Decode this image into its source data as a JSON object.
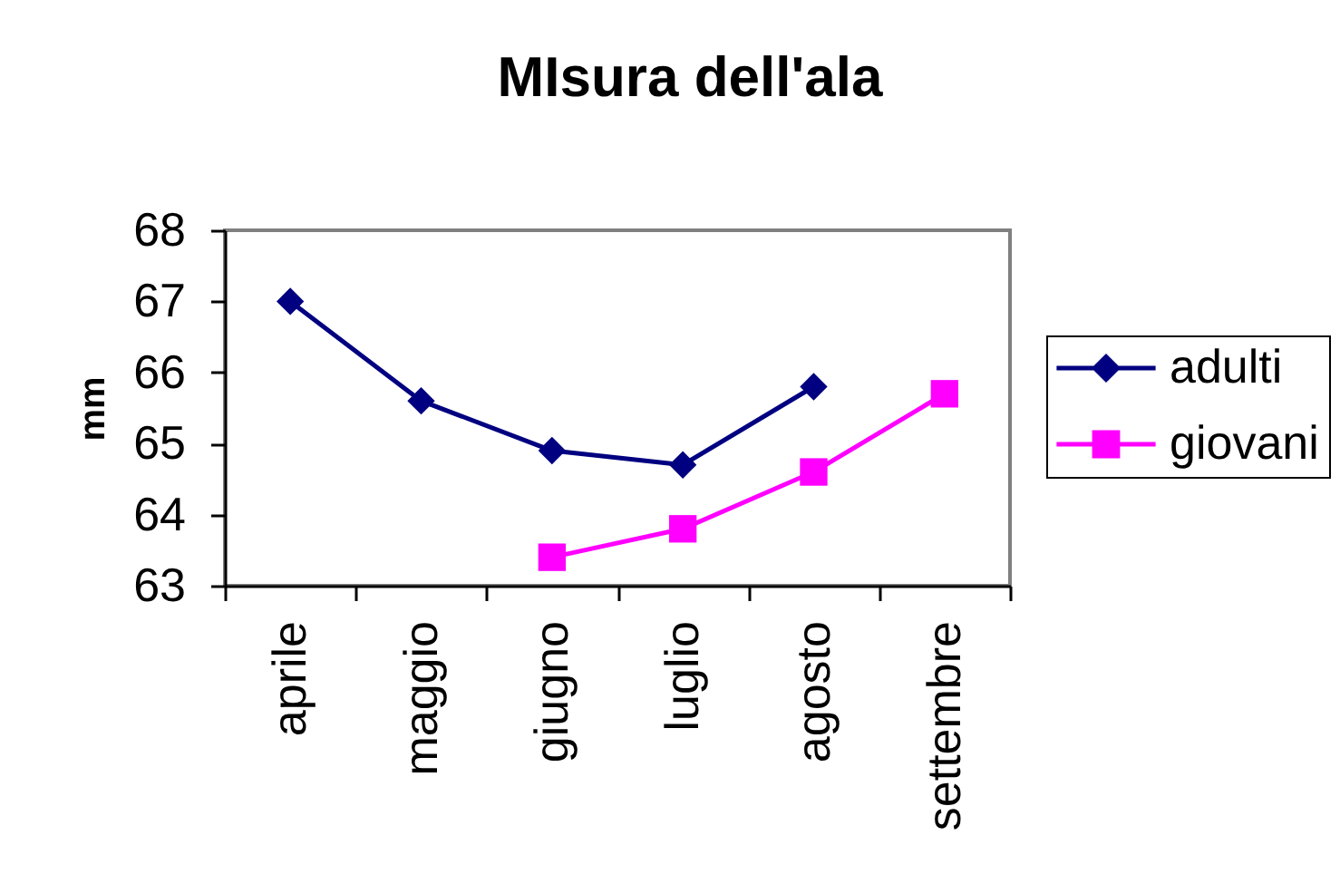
{
  "chart_data": {
    "type": "line",
    "title": "MIsura dell'ala",
    "ylabel": "mm",
    "categories": [
      "aprile",
      "maggio",
      "giugno",
      "luglio",
      "agosto",
      "settembre"
    ],
    "series": [
      {
        "name": "adulti",
        "color": "#000080",
        "marker": "diamond",
        "values": [
          67,
          65.6,
          64.9,
          64.7,
          65.8,
          null
        ]
      },
      {
        "name": "giovani",
        "color": "#ff00ff",
        "marker": "square",
        "values": [
          null,
          null,
          63.4,
          63.8,
          64.6,
          65.7
        ]
      }
    ],
    "ylim": [
      63,
      68
    ],
    "yticks": [
      63,
      64,
      65,
      66,
      67,
      68
    ],
    "legend": "right"
  }
}
